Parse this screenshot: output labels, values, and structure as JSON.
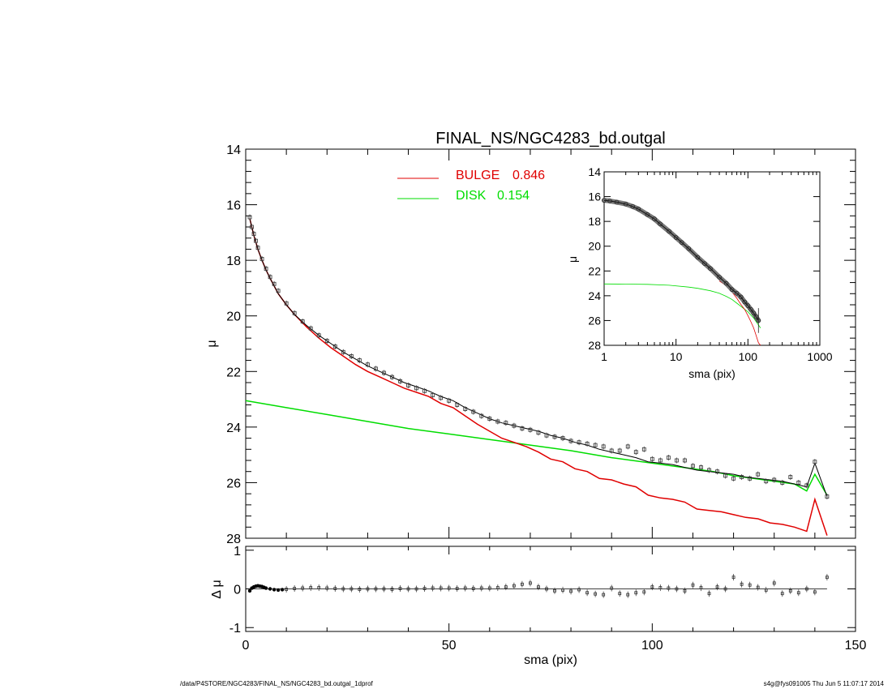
{
  "footer": {
    "left": "/data/P4STORE/NGC4283/FINAL_NS/NGC4283_bd.outgal_1dprof",
    "right": "s4g@fys091005  Thu Jun  5 11:07:17 2014"
  },
  "colors": {
    "bulge": "#e00000",
    "disk": "#00dd00",
    "model": "#000000",
    "data": "#333333"
  },
  "chart_data": [
    {
      "type": "line",
      "title": "FINAL_NS/NGC4283_bd.outgal",
      "xlabel": "",
      "ylabel": "μ",
      "xlim": [
        0,
        150
      ],
      "ylim": [
        28,
        14
      ],
      "yticks": [
        "14",
        "16",
        "18",
        "20",
        "22",
        "24",
        "26",
        "28"
      ],
      "legend": {
        "placement": "top-center",
        "entries": [
          {
            "label": "BULGE",
            "value": "0.846",
            "color": "#e00000"
          },
          {
            "label": "DISK",
            "value": "0.154",
            "color": "#00dd00"
          }
        ]
      },
      "series": [
        {
          "name": "BULGE",
          "x": [
            1,
            2,
            3,
            4,
            5,
            6,
            8,
            10,
            12,
            15,
            18,
            21,
            24,
            27,
            30,
            33,
            36,
            39,
            42,
            45,
            48,
            51,
            54,
            57,
            60,
            63,
            66,
            69,
            72,
            75,
            78,
            81,
            84,
            87,
            90,
            93,
            96,
            99,
            102,
            105,
            108,
            111,
            114,
            117,
            120,
            123,
            126,
            129,
            132,
            135,
            138,
            140,
            143
          ],
          "y": [
            16.5,
            17.1,
            17.6,
            18.0,
            18.35,
            18.65,
            19.2,
            19.6,
            19.95,
            20.4,
            20.8,
            21.15,
            21.45,
            21.75,
            22.0,
            22.2,
            22.4,
            22.6,
            22.75,
            22.9,
            23.15,
            23.3,
            23.6,
            23.9,
            24.15,
            24.4,
            24.55,
            24.7,
            24.9,
            25.15,
            25.25,
            25.5,
            25.6,
            25.85,
            25.9,
            26.05,
            26.15,
            26.45,
            26.55,
            26.6,
            26.7,
            26.95,
            27.0,
            27.05,
            27.15,
            27.25,
            27.3,
            27.45,
            27.5,
            27.6,
            27.75,
            26.6,
            27.9
          ]
        },
        {
          "name": "DISK",
          "x": [
            0,
            10,
            20,
            30,
            40,
            50,
            60,
            70,
            80,
            90,
            100,
            105,
            110,
            115,
            120,
            125,
            130,
            135,
            138,
            140,
            143
          ],
          "y": [
            23.05,
            23.3,
            23.55,
            23.8,
            24.05,
            24.25,
            24.45,
            24.65,
            24.85,
            25.1,
            25.3,
            25.4,
            25.5,
            25.6,
            25.75,
            25.85,
            25.95,
            26.05,
            26.3,
            25.7,
            26.45
          ]
        },
        {
          "name": "model",
          "x": [
            1,
            2,
            3,
            4,
            5,
            6,
            8,
            10,
            12,
            15,
            18,
            21,
            24,
            27,
            30,
            33,
            36,
            39,
            42,
            45,
            48,
            51,
            54,
            57,
            60,
            63,
            66,
            69,
            72,
            75,
            78,
            81,
            84,
            87,
            90,
            93,
            96,
            99,
            102,
            105,
            108,
            111,
            114,
            117,
            120,
            123,
            126,
            129,
            132,
            135,
            138,
            140,
            143
          ],
          "y": [
            16.5,
            17.1,
            17.6,
            18.0,
            18.35,
            18.65,
            19.2,
            19.6,
            19.95,
            20.35,
            20.7,
            21.0,
            21.3,
            21.55,
            21.8,
            22.0,
            22.2,
            22.4,
            22.55,
            22.7,
            22.9,
            23.05,
            23.3,
            23.5,
            23.7,
            23.85,
            23.95,
            24.05,
            24.15,
            24.3,
            24.4,
            24.55,
            24.65,
            24.8,
            24.9,
            25.0,
            25.1,
            25.25,
            25.3,
            25.35,
            25.45,
            25.55,
            25.6,
            25.65,
            25.7,
            25.8,
            25.85,
            25.9,
            25.95,
            26.05,
            26.15,
            25.3,
            26.5
          ]
        },
        {
          "name": "data",
          "x": [
            1,
            1.5,
            2,
            2.5,
            3,
            4,
            5,
            6,
            7,
            8,
            10,
            12,
            14,
            16,
            18,
            20,
            22,
            24,
            26,
            28,
            30,
            32,
            34,
            36,
            38,
            40,
            42,
            44,
            46,
            48,
            50,
            52,
            54,
            56,
            58,
            60,
            62,
            64,
            66,
            68,
            70,
            72,
            74,
            76,
            78,
            80,
            82,
            84,
            86,
            88,
            90,
            92,
            94,
            96,
            98,
            100,
            102,
            104,
            106,
            108,
            110,
            112,
            114,
            116,
            118,
            120,
            122,
            124,
            126,
            128,
            130,
            132,
            134,
            136,
            138,
            140,
            143
          ],
          "y": [
            16.45,
            16.8,
            17.05,
            17.3,
            17.55,
            17.95,
            18.3,
            18.6,
            18.85,
            19.1,
            19.55,
            19.9,
            20.2,
            20.45,
            20.7,
            20.9,
            21.1,
            21.3,
            21.45,
            21.6,
            21.75,
            21.9,
            22.05,
            22.2,
            22.35,
            22.5,
            22.6,
            22.7,
            22.85,
            22.95,
            23.05,
            23.2,
            23.35,
            23.45,
            23.6,
            23.7,
            23.8,
            23.85,
            23.95,
            24.05,
            24.1,
            24.2,
            24.3,
            24.35,
            24.4,
            24.5,
            24.55,
            24.6,
            24.65,
            24.7,
            24.85,
            24.85,
            24.7,
            24.9,
            24.8,
            25.15,
            25.2,
            25.1,
            25.2,
            25.2,
            25.4,
            25.45,
            25.55,
            25.6,
            25.75,
            25.85,
            25.8,
            25.85,
            25.7,
            25.95,
            25.9,
            26.0,
            25.8,
            26.0,
            26.1,
            25.25,
            26.5
          ]
        }
      ]
    },
    {
      "type": "scatter",
      "xlabel": "sma (pix)",
      "ylabel": "Δ μ",
      "xlim": [
        0,
        150
      ],
      "ylim": [
        -1.1,
        1.1
      ],
      "xticks": [
        "0",
        "50",
        "100",
        "150"
      ],
      "yticks": [
        "-1",
        "0",
        "1"
      ],
      "series": [
        {
          "name": "residual",
          "x": [
            1,
            1.5,
            2,
            2.5,
            3,
            3.5,
            4,
            4.5,
            5,
            6,
            7,
            8,
            9,
            10,
            12,
            14,
            16,
            18,
            20,
            22,
            24,
            26,
            28,
            30,
            32,
            34,
            36,
            38,
            40,
            42,
            44,
            46,
            48,
            50,
            52,
            54,
            56,
            58,
            60,
            62,
            64,
            66,
            68,
            70,
            72,
            74,
            76,
            78,
            80,
            82,
            84,
            86,
            88,
            90,
            92,
            94,
            96,
            98,
            100,
            102,
            104,
            106,
            108,
            110,
            112,
            114,
            116,
            118,
            120,
            122,
            124,
            126,
            128,
            130,
            132,
            134,
            136,
            138,
            140,
            143
          ],
          "y": [
            -0.05,
            0.02,
            0.05,
            0.07,
            0.08,
            0.07,
            0.06,
            0.04,
            0.02,
            0.0,
            -0.02,
            -0.03,
            -0.02,
            -0.01,
            0.01,
            0.02,
            0.03,
            0.03,
            0.02,
            0.01,
            0.0,
            0.0,
            -0.01,
            0.0,
            0.0,
            0.0,
            -0.01,
            0.01,
            0.0,
            0.0,
            0.01,
            0.02,
            0.02,
            0.02,
            0.01,
            0.02,
            0.01,
            0.02,
            0.02,
            0.03,
            0.05,
            0.08,
            0.12,
            0.15,
            0.05,
            0.0,
            -0.05,
            -0.03,
            -0.06,
            -0.02,
            -0.1,
            -0.13,
            -0.15,
            0.02,
            -0.12,
            -0.15,
            -0.1,
            -0.08,
            0.05,
            0.03,
            0.02,
            0.0,
            -0.05,
            0.1,
            0.03,
            -0.12,
            0.05,
            0.0,
            0.3,
            0.12,
            0.1,
            0.04,
            -0.03,
            0.15,
            -0.12,
            -0.05,
            -0.1,
            0.0,
            -0.08,
            0.3
          ]
        }
      ]
    },
    {
      "type": "line",
      "xlabel": "sma (pix)",
      "ylabel": "μ",
      "xscale": "log",
      "xlim": [
        1,
        1000
      ],
      "ylim": [
        28,
        14
      ],
      "xticks": [
        "1",
        "10",
        "100",
        "1000"
      ],
      "yticks": [
        "14",
        "16",
        "18",
        "20",
        "22",
        "24",
        "26",
        "28"
      ],
      "series": [
        {
          "name": "data",
          "x": [
            1,
            1.2,
            1.5,
            2,
            2.5,
            3,
            4,
            5,
            6,
            8,
            10,
            12,
            15,
            20,
            25,
            30,
            40,
            50,
            60,
            70,
            80,
            90,
            100,
            110,
            120,
            130,
            140
          ],
          "y": [
            16.3,
            16.35,
            16.45,
            16.6,
            16.8,
            17.0,
            17.45,
            17.8,
            18.2,
            18.8,
            19.3,
            19.7,
            20.2,
            20.9,
            21.4,
            21.8,
            22.5,
            23.0,
            23.5,
            23.8,
            24.1,
            24.5,
            24.8,
            25.1,
            25.4,
            25.7,
            26.0
          ]
        },
        {
          "name": "DISK",
          "x": [
            1,
            2,
            4,
            8,
            15,
            20,
            30,
            40,
            50,
            60,
            70,
            80,
            100,
            120,
            150
          ],
          "y": [
            23.05,
            23.06,
            23.08,
            23.15,
            23.3,
            23.4,
            23.6,
            23.8,
            24.05,
            24.3,
            24.6,
            24.85,
            25.3,
            25.8,
            26.6
          ]
        },
        {
          "name": "BULGE",
          "x": [
            40,
            50,
            60,
            70,
            80,
            90,
            100,
            110,
            120,
            130,
            140,
            150
          ],
          "y": [
            22.8,
            23.2,
            23.7,
            24.2,
            24.7,
            25.1,
            25.6,
            26.1,
            26.6,
            27.2,
            27.8,
            28.0
          ]
        }
      ]
    }
  ]
}
